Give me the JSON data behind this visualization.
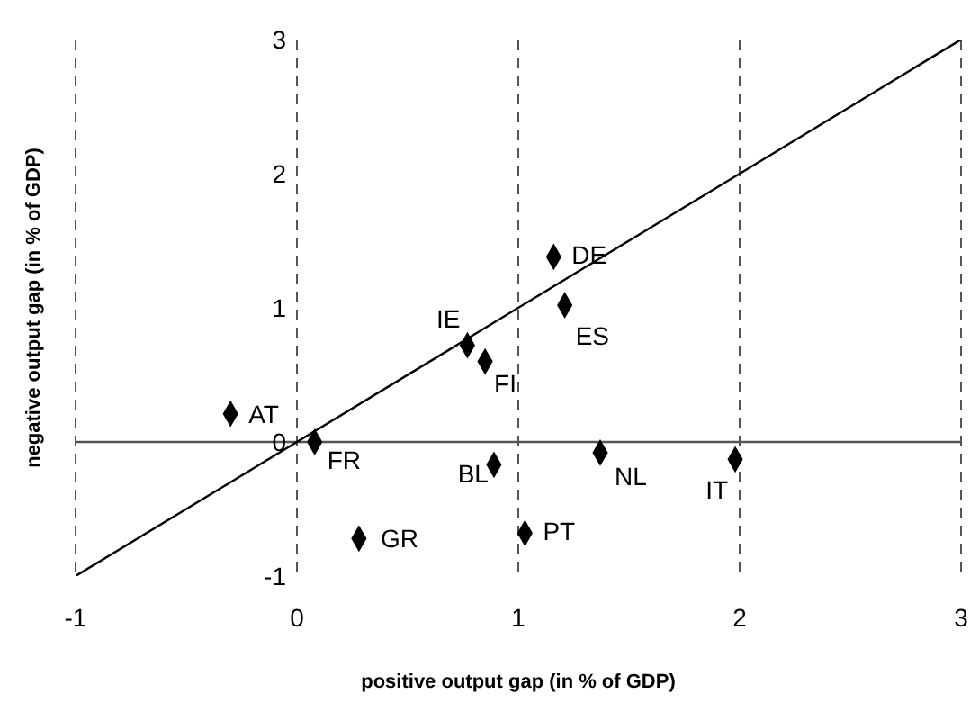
{
  "chart_data": {
    "type": "scatter",
    "xlabel": "positive output gap (in % of GDP)",
    "ylabel": "negative output gap (in % of GDP)",
    "xlim": [
      -1,
      3
    ],
    "ylim": [
      -1,
      3
    ],
    "xticks": [
      -1,
      0,
      1,
      2,
      3
    ],
    "yticks": [
      -1,
      0,
      1,
      2,
      3
    ],
    "grid": "x",
    "line_style": "dashed",
    "marker": "diamond",
    "series": [
      {
        "type": "scatter",
        "color": "#000000",
        "x": [
          -0.3,
          0.08,
          0.28,
          0.77,
          0.85,
          0.89,
          1.03,
          1.16,
          1.21,
          1.37,
          1.98
        ],
        "values": [
          0.21,
          0.0,
          -0.72,
          0.72,
          0.6,
          -0.17,
          -0.68,
          1.38,
          1.02,
          -0.08,
          -0.13
        ]
      },
      {
        "type": "line",
        "color": "#000000",
        "x": [
          -1,
          3
        ],
        "values": [
          -1,
          3
        ],
        "marker": "none",
        "line_style": "solid"
      }
    ],
    "ref_lines": [
      {
        "axis": "y",
        "value": 0,
        "color": "#555555"
      }
    ],
    "annotations": [
      {
        "text": "AT",
        "x": -0.3,
        "y": 0.21
      },
      {
        "text": "FR",
        "x": 0.08,
        "y": 0.0
      },
      {
        "text": "GR",
        "x": 0.28,
        "y": -0.72
      },
      {
        "text": "IE",
        "x": 0.77,
        "y": 0.72
      },
      {
        "text": "FI",
        "x": 0.85,
        "y": 0.6
      },
      {
        "text": "BL",
        "x": 0.89,
        "y": -0.17
      },
      {
        "text": "PT",
        "x": 1.03,
        "y": -0.68
      },
      {
        "text": "DE",
        "x": 1.16,
        "y": 1.38
      },
      {
        "text": "ES",
        "x": 1.21,
        "y": 1.02
      },
      {
        "text": "NL",
        "x": 1.37,
        "y": -0.08
      },
      {
        "text": "IT",
        "x": 1.98,
        "y": -0.13
      }
    ]
  }
}
